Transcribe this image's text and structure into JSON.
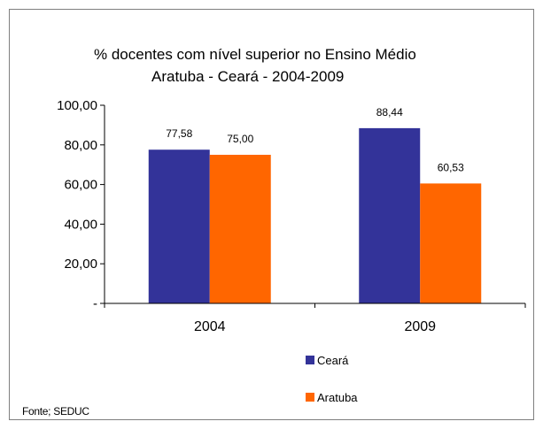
{
  "chart_data": {
    "type": "bar",
    "title": "% docentes com nível  superior no Ensino Médio",
    "subtitle": "Aratuba  -  Ceará - 2004-2009",
    "categories": [
      "2004",
      "2009"
    ],
    "series": [
      {
        "name": "Ceará",
        "values": [
          77.58,
          88.44
        ],
        "labels": [
          "77,58",
          "88,44"
        ],
        "color": "#333399"
      },
      {
        "name": "Aratuba",
        "values": [
          75.0,
          60.53
        ],
        "labels": [
          "75,00",
          "60,53"
        ],
        "color": "#ff6600"
      }
    ],
    "ylim": [
      0,
      100
    ],
    "yticks": [
      {
        "value": 0,
        "label": "-"
      },
      {
        "value": 20,
        "label": "20,00"
      },
      {
        "value": 40,
        "label": "40,00"
      },
      {
        "value": 60,
        "label": "60,00"
      },
      {
        "value": 80,
        "label": "80,00"
      },
      {
        "value": 100,
        "label": "100,00"
      }
    ],
    "grid": false,
    "legend": "bottom-center",
    "source": "Fonte; SEDUC"
  }
}
